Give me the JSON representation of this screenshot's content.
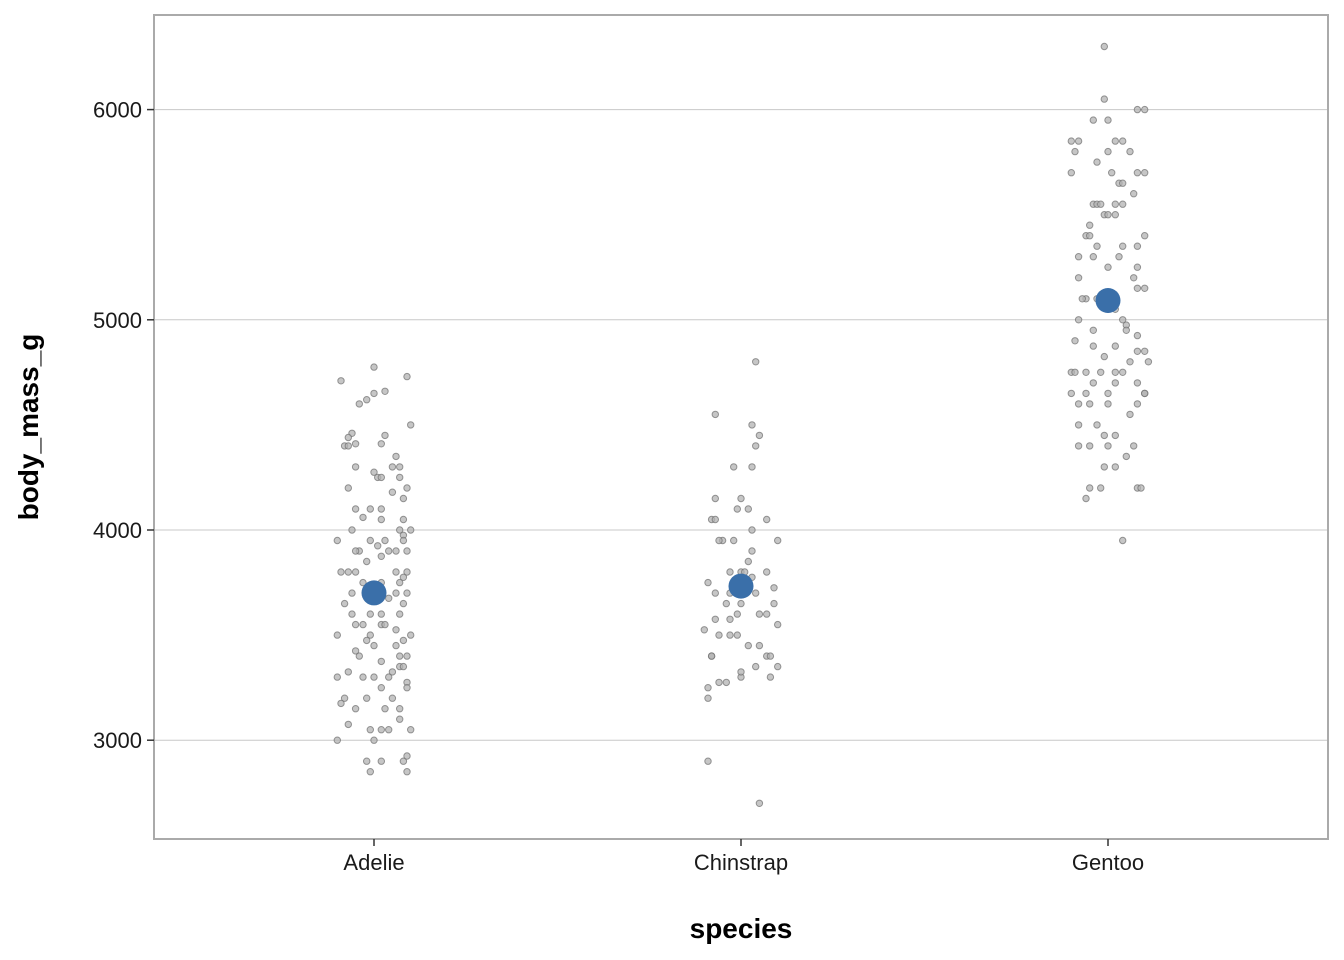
{
  "chart_data": {
    "type": "scatter",
    "title": "",
    "xlabel": "species",
    "ylabel": "body_mass_g",
    "categories": [
      "Adelie",
      "Chinstrap",
      "Gentoo"
    ],
    "ylim": [
      2530,
      6450
    ],
    "yticks": [
      3000,
      4000,
      5000,
      6000
    ],
    "grid": "horizontal",
    "legend": "none",
    "means": [
      3701,
      3733,
      5092
    ],
    "series": [
      {
        "category": "Adelie",
        "points": [
          [
            -0.09,
            4710
          ],
          [
            0.0,
            4775
          ],
          [
            0.09,
            4730
          ],
          [
            0.03,
            4660
          ],
          [
            -0.04,
            4600
          ],
          [
            -0.02,
            4620
          ],
          [
            0.0,
            4650
          ],
          [
            0.1,
            4500
          ],
          [
            -0.06,
            4460
          ],
          [
            -0.07,
            4440
          ],
          [
            -0.08,
            4400
          ],
          [
            -0.05,
            4410
          ],
          [
            0.03,
            4450
          ],
          [
            0.02,
            4410
          ],
          [
            -0.05,
            4300
          ],
          [
            -0.07,
            4400
          ],
          [
            0.06,
            4350
          ],
          [
            0.05,
            4300
          ],
          [
            0.07,
            4300
          ],
          [
            0.0,
            4275
          ],
          [
            0.01,
            4250
          ],
          [
            0.02,
            4250
          ],
          [
            0.07,
            4250
          ],
          [
            0.09,
            4200
          ],
          [
            -0.07,
            4200
          ],
          [
            0.05,
            4180
          ],
          [
            -0.01,
            4100
          ],
          [
            -0.05,
            4100
          ],
          [
            0.02,
            4100
          ],
          [
            0.08,
            4150
          ],
          [
            -0.03,
            4060
          ],
          [
            0.02,
            4050
          ],
          [
            0.08,
            4050
          ],
          [
            -0.06,
            4000
          ],
          [
            0.07,
            4000
          ],
          [
            0.1,
            4000
          ],
          [
            0.08,
            3975
          ],
          [
            -0.1,
            3950
          ],
          [
            -0.01,
            3950
          ],
          [
            0.03,
            3950
          ],
          [
            0.08,
            3950
          ],
          [
            0.01,
            3925
          ],
          [
            -0.04,
            3900
          ],
          [
            -0.05,
            3900
          ],
          [
            0.04,
            3900
          ],
          [
            0.06,
            3900
          ],
          [
            0.09,
            3900
          ],
          [
            0.02,
            3875
          ],
          [
            -0.02,
            3850
          ],
          [
            -0.07,
            3800
          ],
          [
            -0.09,
            3800
          ],
          [
            -0.05,
            3800
          ],
          [
            0.06,
            3800
          ],
          [
            0.09,
            3800
          ],
          [
            0.08,
            3775
          ],
          [
            -0.03,
            3750
          ],
          [
            0.02,
            3750
          ],
          [
            0.07,
            3750
          ],
          [
            -0.06,
            3700
          ],
          [
            0.0,
            3700
          ],
          [
            0.06,
            3700
          ],
          [
            0.09,
            3700
          ],
          [
            -0.02,
            3700
          ],
          [
            0.04,
            3675
          ],
          [
            0.08,
            3650
          ],
          [
            -0.08,
            3650
          ],
          [
            0.02,
            3600
          ],
          [
            -0.01,
            3600
          ],
          [
            -0.06,
            3600
          ],
          [
            0.07,
            3600
          ],
          [
            -0.03,
            3550
          ],
          [
            0.02,
            3550
          ],
          [
            0.03,
            3550
          ],
          [
            -0.05,
            3550
          ],
          [
            0.06,
            3525
          ],
          [
            0.1,
            3500
          ],
          [
            -0.1,
            3500
          ],
          [
            -0.01,
            3500
          ],
          [
            -0.02,
            3475
          ],
          [
            0.08,
            3475
          ],
          [
            0.06,
            3450
          ],
          [
            0.0,
            3450
          ],
          [
            -0.04,
            3400
          ],
          [
            0.07,
            3400
          ],
          [
            0.09,
            3400
          ],
          [
            -0.05,
            3425
          ],
          [
            0.02,
            3375
          ],
          [
            0.07,
            3350
          ],
          [
            0.08,
            3350
          ],
          [
            -0.07,
            3325
          ],
          [
            -0.1,
            3300
          ],
          [
            0.0,
            3300
          ],
          [
            0.05,
            3325
          ],
          [
            -0.03,
            3300
          ],
          [
            0.04,
            3300
          ],
          [
            0.09,
            3275
          ],
          [
            0.09,
            3250
          ],
          [
            0.02,
            3250
          ],
          [
            -0.02,
            3200
          ],
          [
            -0.08,
            3200
          ],
          [
            0.05,
            3200
          ],
          [
            0.07,
            3150
          ],
          [
            -0.05,
            3150
          ],
          [
            0.03,
            3150
          ],
          [
            -0.09,
            3175
          ],
          [
            0.1,
            3050
          ],
          [
            0.07,
            3100
          ],
          [
            -0.01,
            3050
          ],
          [
            0.02,
            3050
          ],
          [
            -0.07,
            3075
          ],
          [
            0.04,
            3050
          ],
          [
            0.0,
            3000
          ],
          [
            -0.1,
            3000
          ],
          [
            -0.02,
            2900
          ],
          [
            0.02,
            2900
          ],
          [
            0.08,
            2900
          ],
          [
            0.09,
            2925
          ],
          [
            -0.01,
            2850
          ],
          [
            0.09,
            2850
          ]
        ]
      },
      {
        "category": "Chinstrap",
        "points": [
          [
            0.04,
            4800
          ],
          [
            -0.07,
            4550
          ],
          [
            0.03,
            4500
          ],
          [
            0.05,
            4450
          ],
          [
            0.04,
            4400
          ],
          [
            0.03,
            4300
          ],
          [
            -0.02,
            4300
          ],
          [
            -0.07,
            4150
          ],
          [
            0.0,
            4150
          ],
          [
            -0.01,
            4100
          ],
          [
            0.07,
            4050
          ],
          [
            0.02,
            4100
          ],
          [
            -0.08,
            4050
          ],
          [
            -0.07,
            4050
          ],
          [
            0.03,
            4000
          ],
          [
            -0.05,
            3950
          ],
          [
            -0.06,
            3950
          ],
          [
            -0.02,
            3950
          ],
          [
            0.1,
            3950
          ],
          [
            0.03,
            3900
          ],
          [
            0.02,
            3850
          ],
          [
            -0.03,
            3800
          ],
          [
            0.0,
            3800
          ],
          [
            0.07,
            3800
          ],
          [
            0.01,
            3800
          ],
          [
            -0.09,
            3750
          ],
          [
            0.03,
            3775
          ],
          [
            0.09,
            3725
          ],
          [
            -0.07,
            3700
          ],
          [
            -0.03,
            3700
          ],
          [
            0.04,
            3700
          ],
          [
            0.01,
            3700
          ],
          [
            0.09,
            3650
          ],
          [
            -0.04,
            3650
          ],
          [
            0.0,
            3650
          ],
          [
            0.05,
            3600
          ],
          [
            0.07,
            3600
          ],
          [
            -0.07,
            3575
          ],
          [
            -0.03,
            3575
          ],
          [
            -0.01,
            3600
          ],
          [
            0.1,
            3550
          ],
          [
            -0.1,
            3525
          ],
          [
            -0.03,
            3500
          ],
          [
            -0.01,
            3500
          ],
          [
            -0.06,
            3500
          ],
          [
            0.05,
            3450
          ],
          [
            0.02,
            3450
          ],
          [
            -0.08,
            3400
          ],
          [
            0.07,
            3400
          ],
          [
            0.08,
            3400
          ],
          [
            0.04,
            3350
          ],
          [
            -0.08,
            3400
          ],
          [
            0.1,
            3350
          ],
          [
            0.0,
            3300
          ],
          [
            0.08,
            3300
          ],
          [
            0.0,
            3325
          ],
          [
            -0.06,
            3275
          ],
          [
            -0.04,
            3275
          ],
          [
            -0.09,
            3250
          ],
          [
            -0.09,
            3200
          ],
          [
            -0.09,
            2900
          ],
          [
            0.05,
            2700
          ]
        ]
      },
      {
        "category": "Gentoo",
        "points": [
          [
            -0.01,
            6300
          ],
          [
            -0.01,
            6050
          ],
          [
            0.08,
            6000
          ],
          [
            0.1,
            6000
          ],
          [
            -0.04,
            5950
          ],
          [
            0.0,
            5950
          ],
          [
            -0.08,
            5850
          ],
          [
            0.02,
            5850
          ],
          [
            -0.1,
            5850
          ],
          [
            0.04,
            5850
          ],
          [
            -0.09,
            5800
          ],
          [
            0.0,
            5800
          ],
          [
            0.06,
            5800
          ],
          [
            -0.03,
            5750
          ],
          [
            0.08,
            5700
          ],
          [
            0.1,
            5700
          ],
          [
            -0.1,
            5700
          ],
          [
            0.01,
            5700
          ],
          [
            0.03,
            5650
          ],
          [
            0.04,
            5650
          ],
          [
            0.07,
            5600
          ],
          [
            -0.04,
            5550
          ],
          [
            -0.03,
            5550
          ],
          [
            -0.02,
            5550
          ],
          [
            0.02,
            5550
          ],
          [
            0.04,
            5550
          ],
          [
            -0.01,
            5500
          ],
          [
            0.0,
            5500
          ],
          [
            0.02,
            5500
          ],
          [
            -0.05,
            5450
          ],
          [
            -0.06,
            5400
          ],
          [
            -0.05,
            5400
          ],
          [
            0.1,
            5400
          ],
          [
            -0.03,
            5350
          ],
          [
            0.04,
            5350
          ],
          [
            0.08,
            5350
          ],
          [
            -0.08,
            5300
          ],
          [
            -0.04,
            5300
          ],
          [
            0.03,
            5300
          ],
          [
            0.0,
            5250
          ],
          [
            0.08,
            5250
          ],
          [
            -0.08,
            5200
          ],
          [
            0.07,
            5200
          ],
          [
            0.08,
            5150
          ],
          [
            0.1,
            5150
          ],
          [
            -0.06,
            5100
          ],
          [
            -0.07,
            5100
          ],
          [
            -0.03,
            5100
          ],
          [
            0.0,
            5050
          ],
          [
            0.02,
            5050
          ],
          [
            0.04,
            5000
          ],
          [
            -0.08,
            5000
          ],
          [
            0.05,
            4975
          ],
          [
            -0.04,
            4950
          ],
          [
            0.05,
            4950
          ],
          [
            0.08,
            4925
          ],
          [
            -0.09,
            4900
          ],
          [
            -0.04,
            4875
          ],
          [
            0.02,
            4875
          ],
          [
            0.08,
            4850
          ],
          [
            0.1,
            4850
          ],
          [
            -0.01,
            4825
          ],
          [
            0.06,
            4800
          ],
          [
            0.11,
            4800
          ],
          [
            -0.1,
            4750
          ],
          [
            -0.09,
            4750
          ],
          [
            -0.06,
            4750
          ],
          [
            -0.02,
            4750
          ],
          [
            0.02,
            4750
          ],
          [
            0.04,
            4750
          ],
          [
            0.08,
            4700
          ],
          [
            -0.04,
            4700
          ],
          [
            0.02,
            4700
          ],
          [
            -0.06,
            4650
          ],
          [
            0.0,
            4650
          ],
          [
            0.1,
            4650
          ],
          [
            -0.1,
            4650
          ],
          [
            -0.08,
            4600
          ],
          [
            -0.05,
            4600
          ],
          [
            0.0,
            4600
          ],
          [
            0.08,
            4600
          ],
          [
            0.1,
            4650
          ],
          [
            0.06,
            4550
          ],
          [
            -0.08,
            4500
          ],
          [
            -0.03,
            4500
          ],
          [
            -0.01,
            4450
          ],
          [
            0.02,
            4450
          ],
          [
            -0.08,
            4400
          ],
          [
            -0.05,
            4400
          ],
          [
            0.0,
            4400
          ],
          [
            0.07,
            4400
          ],
          [
            0.05,
            4350
          ],
          [
            -0.01,
            4300
          ],
          [
            0.02,
            4300
          ],
          [
            -0.05,
            4200
          ],
          [
            0.08,
            4200
          ],
          [
            -0.02,
            4200
          ],
          [
            0.09,
            4200
          ],
          [
            -0.06,
            4150
          ],
          [
            0.04,
            3950
          ]
        ]
      }
    ]
  },
  "colors": {
    "mean_point": "#3a6fa9",
    "raw_point_fill": "#b3b3b3",
    "raw_point_stroke": "#6e6e6e",
    "grid": "#c8c8c8",
    "panel_border": "#aaaaaa"
  }
}
